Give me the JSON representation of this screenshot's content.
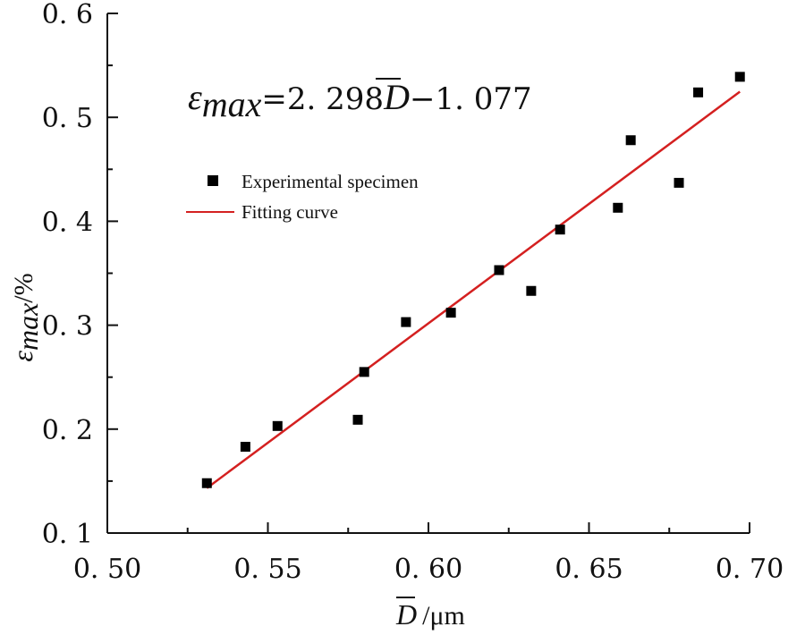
{
  "chart_data": {
    "type": "scatter",
    "title": "",
    "xlabel": {
      "symbol": "D",
      "unit": "/μm"
    },
    "ylabel": {
      "symbol": "ε",
      "subscript": "max",
      "unit": "/%"
    },
    "xlim": [
      0.5,
      0.7
    ],
    "ylim": [
      0.1,
      0.6
    ],
    "x_ticks": [
      "0. 50",
      "0. 55",
      "0. 60",
      "0. 65",
      "0. 70"
    ],
    "x_tick_values": [
      0.5,
      0.55,
      0.6,
      0.65,
      0.7
    ],
    "y_ticks": [
      "0. 1",
      "0. 2",
      "0. 3",
      "0. 4",
      "0. 5",
      "0. 6"
    ],
    "y_tick_values": [
      0.1,
      0.2,
      0.3,
      0.4,
      0.5,
      0.6
    ],
    "equation": {
      "lhs_symbol": "ε",
      "lhs_subscript": "max",
      "equals": "=",
      "coefficient": "2. 298",
      "variable": "D",
      "operator": "−",
      "intercept": "1. 077"
    },
    "series": [
      {
        "name": "Experimental specimen",
        "kind": "scatter",
        "marker": "square",
        "color": "#000000",
        "x": [
          0.531,
          0.543,
          0.553,
          0.578,
          0.58,
          0.593,
          0.607,
          0.622,
          0.632,
          0.641,
          0.659,
          0.663,
          0.678,
          0.684,
          0.697
        ],
        "y": [
          0.148,
          0.183,
          0.203,
          0.209,
          0.255,
          0.303,
          0.312,
          0.353,
          0.333,
          0.392,
          0.413,
          0.478,
          0.437,
          0.524,
          0.539
        ]
      },
      {
        "name": "Fitting curve",
        "kind": "line",
        "color": "#d42020",
        "slope": 2.298,
        "intercept": -1.077,
        "x_range": [
          0.531,
          0.697
        ]
      }
    ],
    "legend": "upper-left",
    "grid": false
  }
}
